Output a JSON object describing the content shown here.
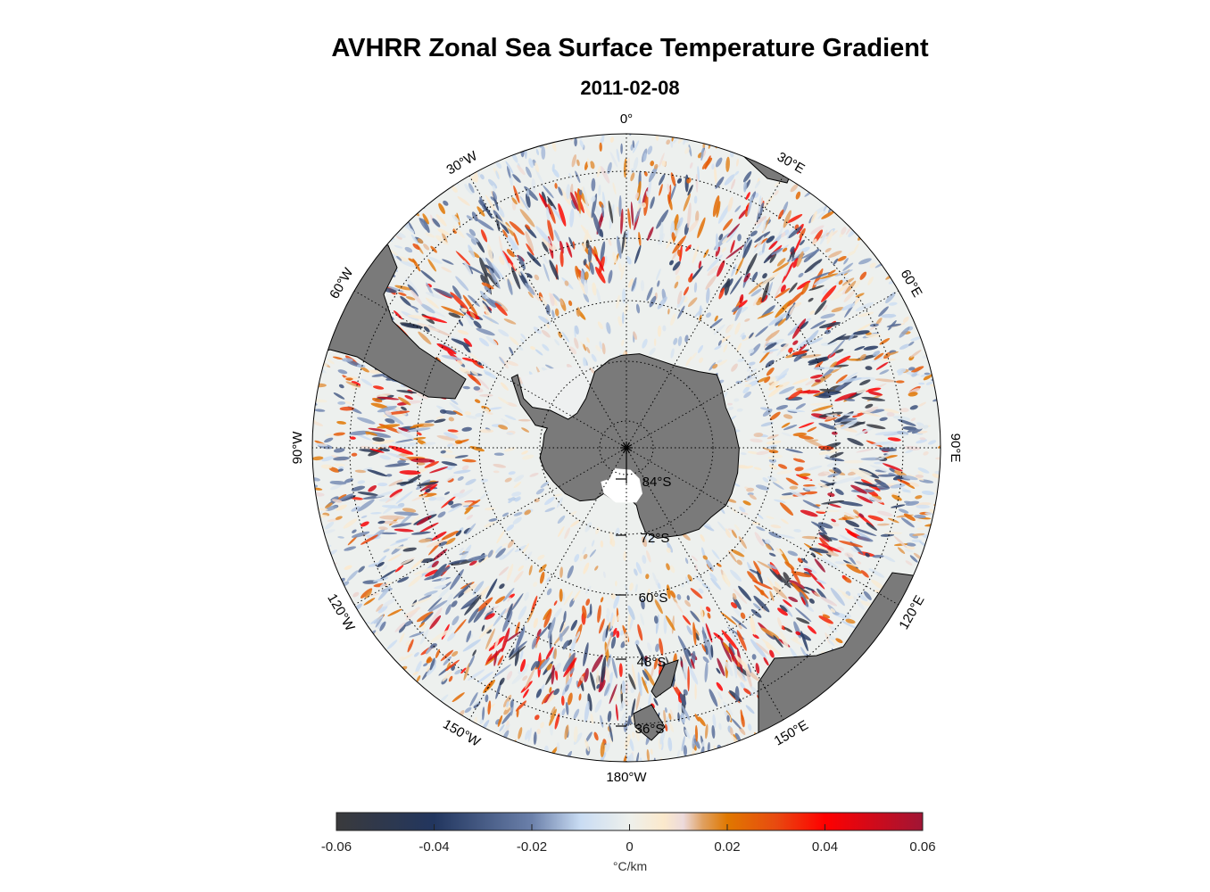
{
  "title": "AVHRR Zonal Sea Surface Temperature Gradient",
  "subtitle": "2011-02-08",
  "map": {
    "projection": "south polar stereographic",
    "longitude_labels": [
      "0°",
      "30°E",
      "60°E",
      "90°E",
      "120°E",
      "150°E",
      "180°W",
      "150°W",
      "120°W",
      "90°W",
      "60°W",
      "30°W"
    ],
    "latitude_labels": [
      "84°S",
      "72°S",
      "60°S",
      "48°S",
      "36°S"
    ],
    "land_color": "#7a7a7a",
    "no_data_color": "#ffffff"
  },
  "colorbar": {
    "range": [
      -0.06,
      0.06
    ],
    "tick_labels": [
      "-0.06",
      "-0.04",
      "-0.02",
      "0",
      "0.02",
      "0.04",
      "0.06"
    ],
    "unit": "°C/km",
    "colors": [
      {
        "v": -0.06,
        "c": "#3a3a3c"
      },
      {
        "v": -0.04,
        "c": "#22365f"
      },
      {
        "v": -0.02,
        "c": "#6b80aa"
      },
      {
        "v": -0.01,
        "c": "#c9dcf3"
      },
      {
        "v": 0.0,
        "c": "#eef0ec"
      },
      {
        "v": 0.007,
        "c": "#fbe9cc"
      },
      {
        "v": 0.011,
        "c": "#ecdadb"
      },
      {
        "v": 0.015,
        "c": "#e0a060"
      },
      {
        "v": 0.02,
        "c": "#e07800"
      },
      {
        "v": 0.03,
        "c": "#e84a10"
      },
      {
        "v": 0.04,
        "c": "#ff0000"
      },
      {
        "v": 0.06,
        "c": "#a01535"
      }
    ]
  }
}
